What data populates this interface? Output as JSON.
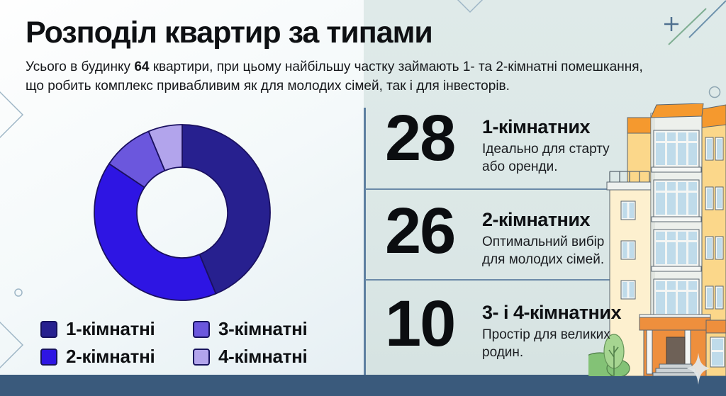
{
  "page": {
    "title": "Розподіл квартир за типами",
    "subtitle": {
      "line1_pre": "Усього в будинку ",
      "line1_bold": "64",
      "line1_post": " квартири, при цьому найбільшу частку займають 1- та 2-кімнатні помешкання,",
      "line2": "що робить комплекс привабливим як для молодих сімей, так і для інвесторів."
    }
  },
  "chart_data": {
    "type": "pie",
    "variant": "donut",
    "total_apartments": 64,
    "labels": [
      "1-кімнатні",
      "2-кімнатні",
      "3-кімнатні",
      "4-кімнатні"
    ],
    "values": [
      28,
      26,
      6,
      4
    ],
    "colors": [
      "#27208f",
      "#2e15e3",
      "#6b57dd",
      "#b2a4ec"
    ],
    "stroke_color": "#1a1060",
    "start_angle_deg": 0,
    "direction": "clockwise",
    "inner_radius_ratio": 0.52,
    "legend_position": "bottom-left"
  },
  "stats": {
    "items": [
      {
        "value": "28",
        "title": "1-кімнатних",
        "desc": "Ідеально для старту або оренди."
      },
      {
        "value": "26",
        "title": "2-кімнатних",
        "desc": "Оптимальний вибір для молодих сімей."
      },
      {
        "value": "10",
        "title": "3- і 4-кімнатних",
        "desc": "Простір для великих родин."
      }
    ]
  },
  "theme": {
    "left_bg_top": "#fefefe",
    "left_bg_bottom": "#dfeaf0",
    "right_panel_bg": "#dce8e7",
    "footer_band": "#3a5a7c",
    "divider": "#6b8aa8",
    "accent_line": "#5d7fa0",
    "text": "#14161a"
  },
  "illustration": {
    "name": "apartment-building",
    "wall_yellow": "#fbd78a",
    "wall_cream": "#fdf0cf",
    "roof_orange": "#f5992e",
    "entrance_orange": "#ee8f3d",
    "glass_blue": "#bfdbea",
    "frame_white": "#f4f6f4",
    "outline": "#5a6670",
    "bush_green": "#83c276",
    "tree_green": "#a6d591"
  }
}
